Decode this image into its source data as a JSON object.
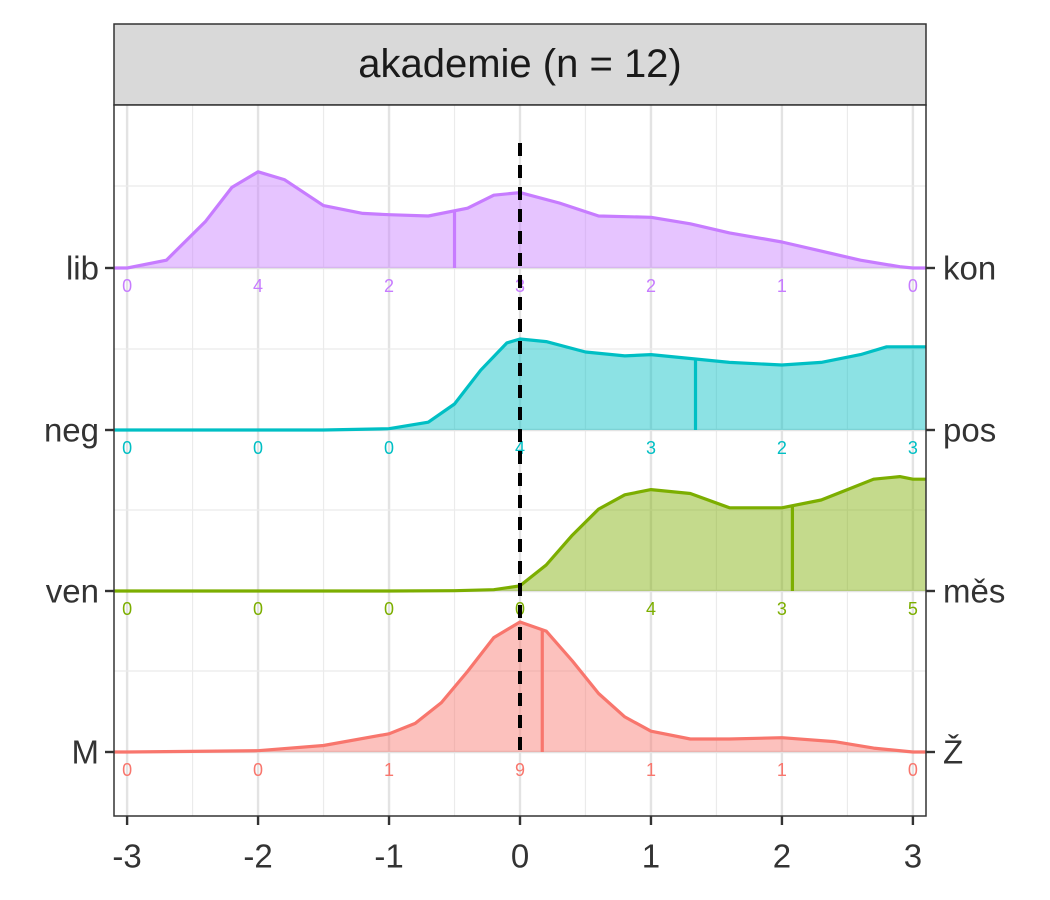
{
  "chart_data": {
    "type": "ridgeline",
    "facet_title": "akademie (n = 12)",
    "x_ticks": [
      "-3",
      "-2",
      "-1",
      "0",
      "1",
      "2",
      "3"
    ],
    "xlim": [
      -3.1,
      3.1
    ],
    "reference_line_x": 0,
    "grid": true,
    "series": [
      {
        "left_label": "M",
        "right_label": "Ž",
        "color": "#F8766D",
        "counts": [
          "0",
          "0",
          "1",
          "9",
          "1",
          "1",
          "0"
        ],
        "mean": 0.17,
        "density_x": [
          -3,
          -2,
          -1.5,
          -1,
          -0.8,
          -0.6,
          -0.4,
          -0.2,
          0,
          0.2,
          0.4,
          0.6,
          0.8,
          1,
          1.3,
          1.6,
          2,
          2.4,
          2.7,
          3
        ],
        "density_y": [
          0,
          0.01,
          0.05,
          0.14,
          0.22,
          0.38,
          0.62,
          0.88,
          1.0,
          0.93,
          0.7,
          0.45,
          0.27,
          0.16,
          0.1,
          0.1,
          0.11,
          0.08,
          0.03,
          0
        ]
      },
      {
        "left_label": "ven",
        "right_label": "měs",
        "color": "#7CAE00",
        "counts": [
          "0",
          "0",
          "0",
          "0",
          "4",
          "3",
          "5"
        ],
        "mean": 2.08,
        "density_x": [
          -3,
          -1,
          -0.5,
          -0.2,
          0,
          0.2,
          0.4,
          0.6,
          0.8,
          1,
          1.3,
          1.6,
          2,
          2.3,
          2.5,
          2.7,
          2.9,
          3
        ],
        "density_y": [
          0,
          0,
          0.002,
          0.01,
          0.04,
          0.2,
          0.43,
          0.63,
          0.74,
          0.78,
          0.75,
          0.64,
          0.64,
          0.7,
          0.78,
          0.86,
          0.88,
          0.86
        ]
      },
      {
        "left_label": "neg",
        "right_label": "pos",
        "color": "#00BFC4",
        "counts": [
          "0",
          "0",
          "0",
          "4",
          "3",
          "2",
          "3"
        ],
        "mean": 1.34,
        "density_x": [
          -3,
          -1.5,
          -1,
          -0.7,
          -0.5,
          -0.3,
          -0.1,
          0,
          0.2,
          0.5,
          0.8,
          1,
          1.3,
          1.6,
          2,
          2.3,
          2.6,
          2.8,
          3
        ],
        "density_y": [
          0,
          0,
          0.01,
          0.06,
          0.2,
          0.46,
          0.67,
          0.7,
          0.68,
          0.6,
          0.57,
          0.58,
          0.55,
          0.52,
          0.5,
          0.52,
          0.58,
          0.64,
          0.64
        ]
      },
      {
        "left_label": "lib",
        "right_label": "kon",
        "color": "#C77CFF",
        "counts": [
          "0",
          "4",
          "2",
          "3",
          "2",
          "1",
          "0"
        ],
        "mean": -0.5,
        "density_x": [
          -3,
          -2.7,
          -2.4,
          -2.2,
          -2,
          -1.8,
          -1.5,
          -1.2,
          -1,
          -0.7,
          -0.4,
          -0.2,
          0,
          0.3,
          0.6,
          1,
          1.3,
          1.6,
          2,
          2.3,
          2.6,
          2.9,
          3
        ],
        "density_y": [
          0,
          0.06,
          0.36,
          0.62,
          0.74,
          0.68,
          0.48,
          0.42,
          0.41,
          0.4,
          0.46,
          0.56,
          0.58,
          0.5,
          0.4,
          0.39,
          0.34,
          0.27,
          0.2,
          0.13,
          0.06,
          0.01,
          0
        ]
      }
    ]
  }
}
